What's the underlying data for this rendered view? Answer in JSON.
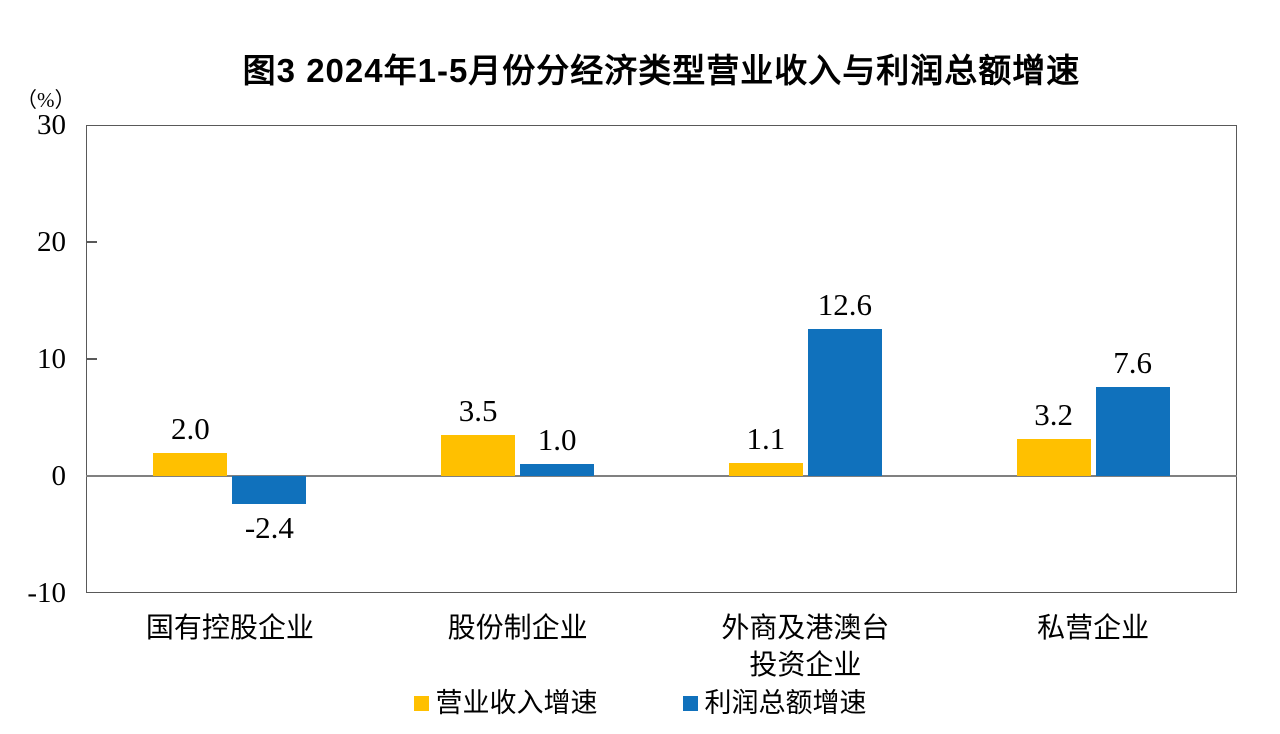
{
  "title": "图3 2024年1-5月份分经济类型营业收入与利润总额增速",
  "y_axis": {
    "unit_label": "（%）"
  },
  "colors": {
    "frame": "#595959",
    "zero_line": "#808080",
    "text": "#000000",
    "background": "#ffffff"
  },
  "chart_data": {
    "type": "bar",
    "title": "图3 2024年1-5月份分经济类型营业收入与利润总额增速",
    "xlabel": "",
    "ylabel": "（%）",
    "categories": [
      "国有控股企业",
      "股份制企业",
      "外商及港澳台\n投资企业",
      "私营企业"
    ],
    "series": [
      {
        "name": "营业收入增速",
        "color": "#FFC000",
        "values": [
          2.0,
          3.5,
          1.1,
          3.2
        ],
        "labels": [
          "2.0",
          "3.5",
          "1.1",
          "3.2"
        ]
      },
      {
        "name": "利润总额增速",
        "color": "#1071BC",
        "values": [
          -2.4,
          1.0,
          12.6,
          7.6
        ],
        "labels": [
          "-2.4",
          "1.0",
          "12.6",
          "7.6"
        ]
      }
    ],
    "ylim": [
      -10,
      30
    ],
    "yticks": [
      30,
      20,
      10,
      0,
      -10
    ],
    "grid": false,
    "zero_line": true,
    "legend_position": "bottom"
  }
}
